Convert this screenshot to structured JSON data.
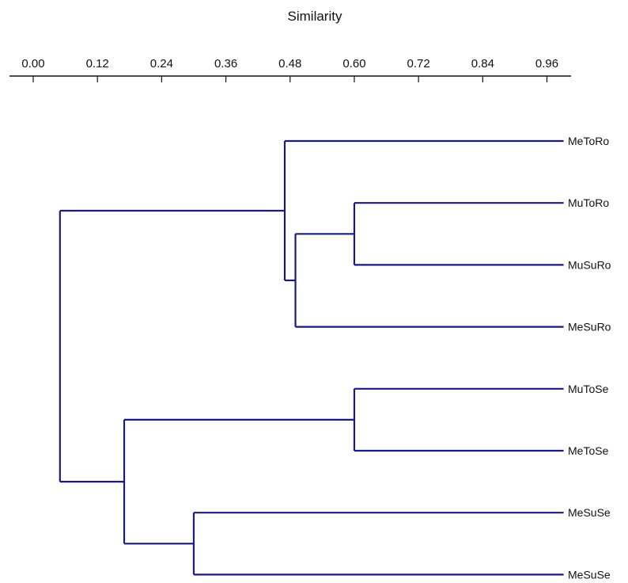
{
  "chart_data": {
    "type": "dendrogram",
    "title": "",
    "xlabel": "Similarity",
    "ylabel": "",
    "xlim": [
      0.0,
      1.0
    ],
    "ticks": [
      "0.00",
      "0.12",
      "0.24",
      "0.36",
      "0.48",
      "0.60",
      "0.72",
      "0.84",
      "0.96"
    ],
    "tick_values": [
      0.0,
      0.12,
      0.24,
      0.36,
      0.48,
      0.6,
      0.72,
      0.84,
      0.96
    ],
    "leaves": [
      "MeToRo",
      "MuToRo",
      "MuSuRo",
      "MeSuRo",
      "MuToSe",
      "MeToSe",
      "MeSuSe",
      "MeSuSe"
    ],
    "leaf_end": 1.0,
    "merges": [
      {
        "id": "n1",
        "children": [
          "MuToRo",
          "MuSuRo"
        ],
        "similarity": 0.6
      },
      {
        "id": "n2",
        "children": [
          "n1",
          "MeSuRo"
        ],
        "similarity": 0.49
      },
      {
        "id": "n3",
        "children": [
          "MeToRo",
          "n2"
        ],
        "similarity": 0.47
      },
      {
        "id": "n4",
        "children": [
          "MuToSe",
          "MeToSe"
        ],
        "similarity": 0.6
      },
      {
        "id": "n5",
        "children": [
          "MeSuSe#6",
          "MeSuSe#7"
        ],
        "similarity": 0.3
      },
      {
        "id": "n6",
        "children": [
          "n4",
          "n5"
        ],
        "similarity": 0.17
      },
      {
        "id": "n7",
        "children": [
          "n3",
          "n6"
        ],
        "similarity": 0.05
      }
    ],
    "grid": false,
    "legend": "none",
    "branch_color": "#1a1a80"
  }
}
